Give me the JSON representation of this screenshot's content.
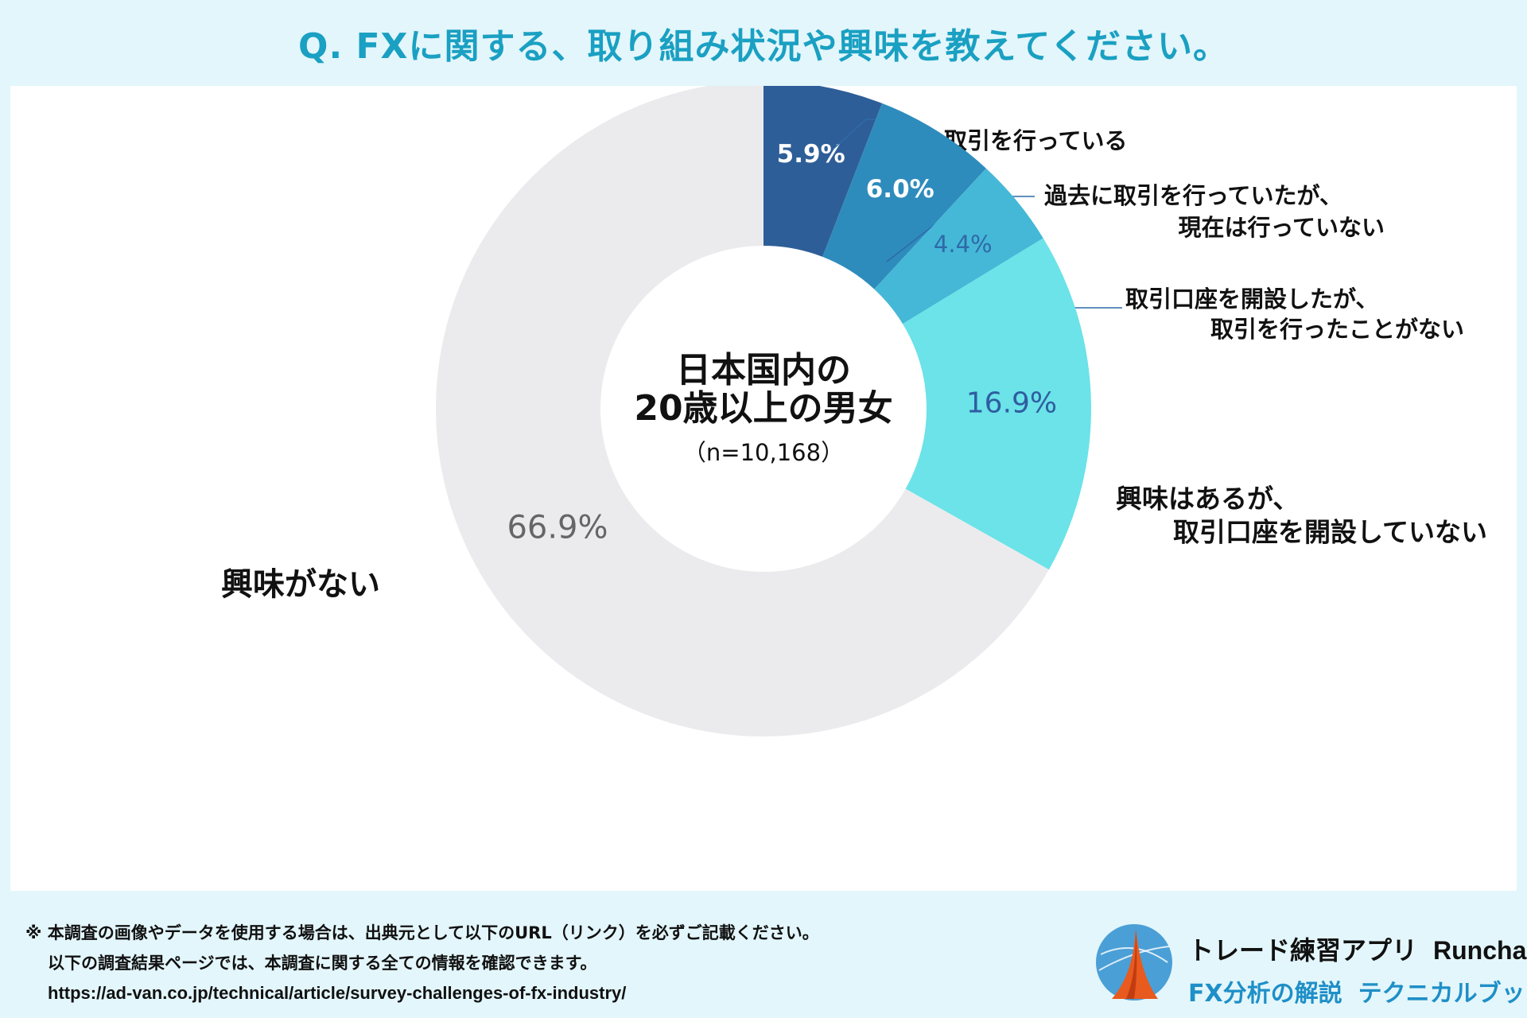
{
  "header": {
    "title": "Q. FXに関する、取り組み状況や興味を教えてください。"
  },
  "chart_data": {
    "type": "pie",
    "variant": "donut",
    "center_label": {
      "line1": "日本国内の",
      "line2": "20歳以上の男女",
      "sample": "（n=10,168）"
    },
    "slices": [
      {
        "label_lines": [
          "現在、取引を行っている"
        ],
        "value": 5.9,
        "value_label": "5.9%",
        "color": "#2e5e98"
      },
      {
        "label_lines": [
          "過去に取引を行っていたが、",
          "現在は行っていない"
        ],
        "value": 6.0,
        "value_label": "6.0%",
        "color": "#2e8cbc"
      },
      {
        "label_lines": [
          "取引口座を開設したが、",
          "取引を行ったことがない"
        ],
        "value": 4.4,
        "value_label": "4.4%",
        "color": "#45b8d7"
      },
      {
        "label_lines": [
          "興味はあるが、",
          "取引口座を開設していない"
        ],
        "value": 16.9,
        "value_label": "16.9%",
        "color": "#6be3e8"
      },
      {
        "label_lines": [
          "興味がない"
        ],
        "value": 66.9,
        "value_label": "66.9%",
        "color": "#ebebed"
      }
    ]
  },
  "footer": {
    "note_line1": "※ 本調査の画像やデータを使用する場合は、出典元として以下のURL（リンク）を必ずご記載ください。",
    "note_line2": "以下の調査結果ページでは、本調査に関する全ての情報を確認できます。",
    "url": "https://ad-van.co.jp/technical/article/survey-challenges-of-fx-industry/"
  },
  "brand": {
    "name_jp": "トレード練習アプリ",
    "name_en": "Runcha",
    "tagline_1": "FX分析の解説",
    "tagline_2": "テクニカルブック"
  }
}
